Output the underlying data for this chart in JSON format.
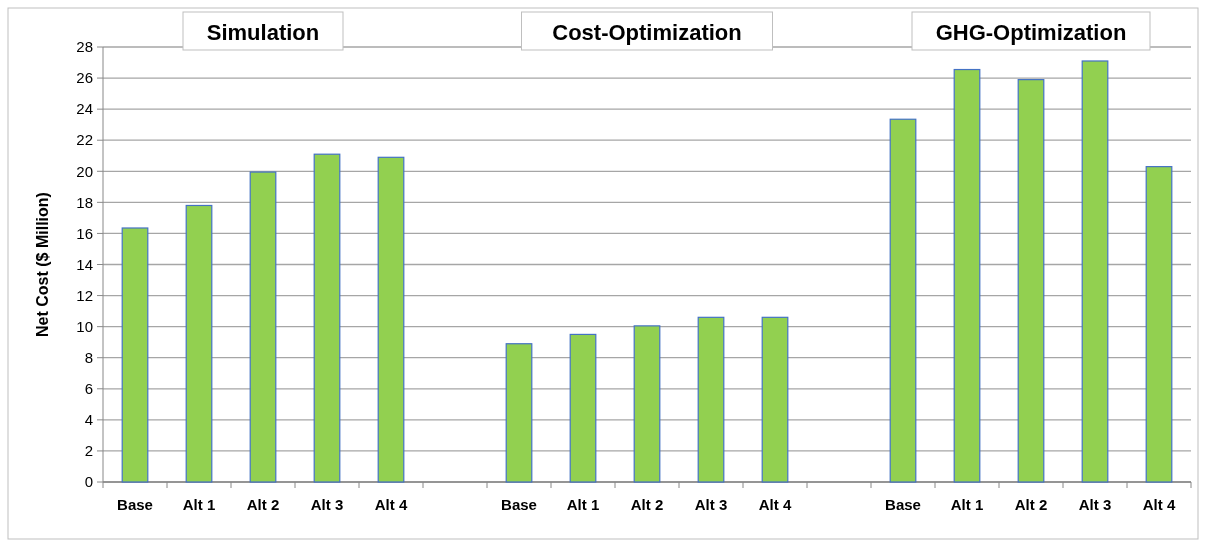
{
  "chart_data": {
    "type": "bar",
    "ylabel": "Net Cost ($ Million)",
    "categories": [
      "Base",
      "Alt 1",
      "Alt 2",
      "Alt 3",
      "Alt 4",
      null,
      "Base",
      "Alt 1",
      "Alt 2",
      "Alt 3",
      "Alt 4",
      null,
      "Base",
      "Alt 1",
      "Alt 2",
      "Alt 3",
      "Alt 4"
    ],
    "values": [
      16.35,
      17.8,
      19.95,
      21.1,
      20.9,
      null,
      8.9,
      9.5,
      10.05,
      10.6,
      10.6,
      null,
      23.35,
      26.55,
      25.9,
      27.1,
      20.3
    ],
    "color": "#92d050",
    "ylim": [
      0,
      28
    ],
    "yticks": [
      0,
      2,
      4,
      6,
      8,
      10,
      12,
      14,
      16,
      18,
      20,
      22,
      24,
      26,
      28
    ],
    "grid": "y",
    "annotations": [
      "Simulation",
      "Cost-Optimization",
      "GHG-Optimization"
    ]
  }
}
